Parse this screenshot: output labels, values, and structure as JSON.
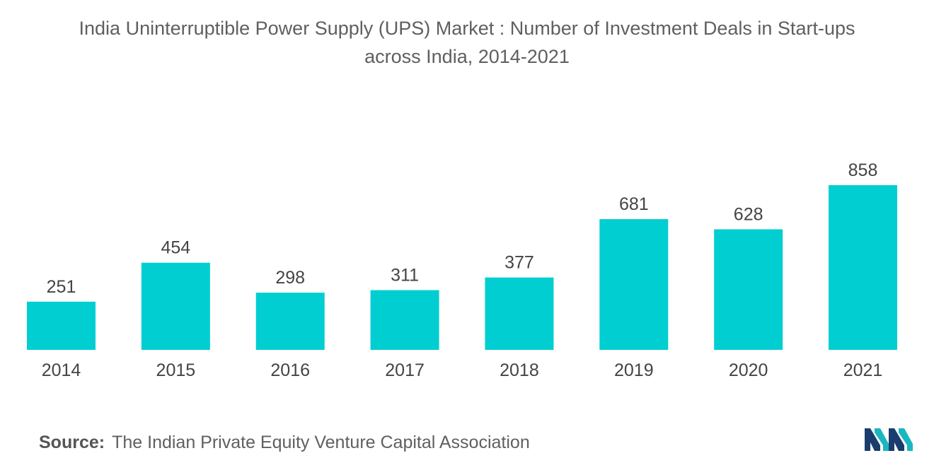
{
  "title_line1": "India Uninterruptible Power Supply (UPS) Market : Number of Investment Deals in Start-ups",
  "title_line2": "across India, 2014-2021",
  "source_label": "Source:",
  "source_text": "The Indian Private Equity Venture Capital Association",
  "colors": {
    "bar": "#00CED1",
    "text": "#444444",
    "title": "#5f5f5f",
    "logo_dark": "#1b3d6d",
    "logo_teal": "#1ab7c0"
  },
  "chart_data": {
    "type": "bar",
    "title": "India Uninterruptible Power Supply (UPS) Market : Number of Investment Deals in Start-ups across India, 2014-2021",
    "categories": [
      "2014",
      "2015",
      "2016",
      "2017",
      "2018",
      "2019",
      "2020",
      "2021"
    ],
    "values": [
      251,
      454,
      298,
      311,
      377,
      681,
      628,
      858
    ],
    "xlabel": "",
    "ylabel": "",
    "ylim": [
      0,
      858
    ],
    "grid": false,
    "legend": "none"
  }
}
